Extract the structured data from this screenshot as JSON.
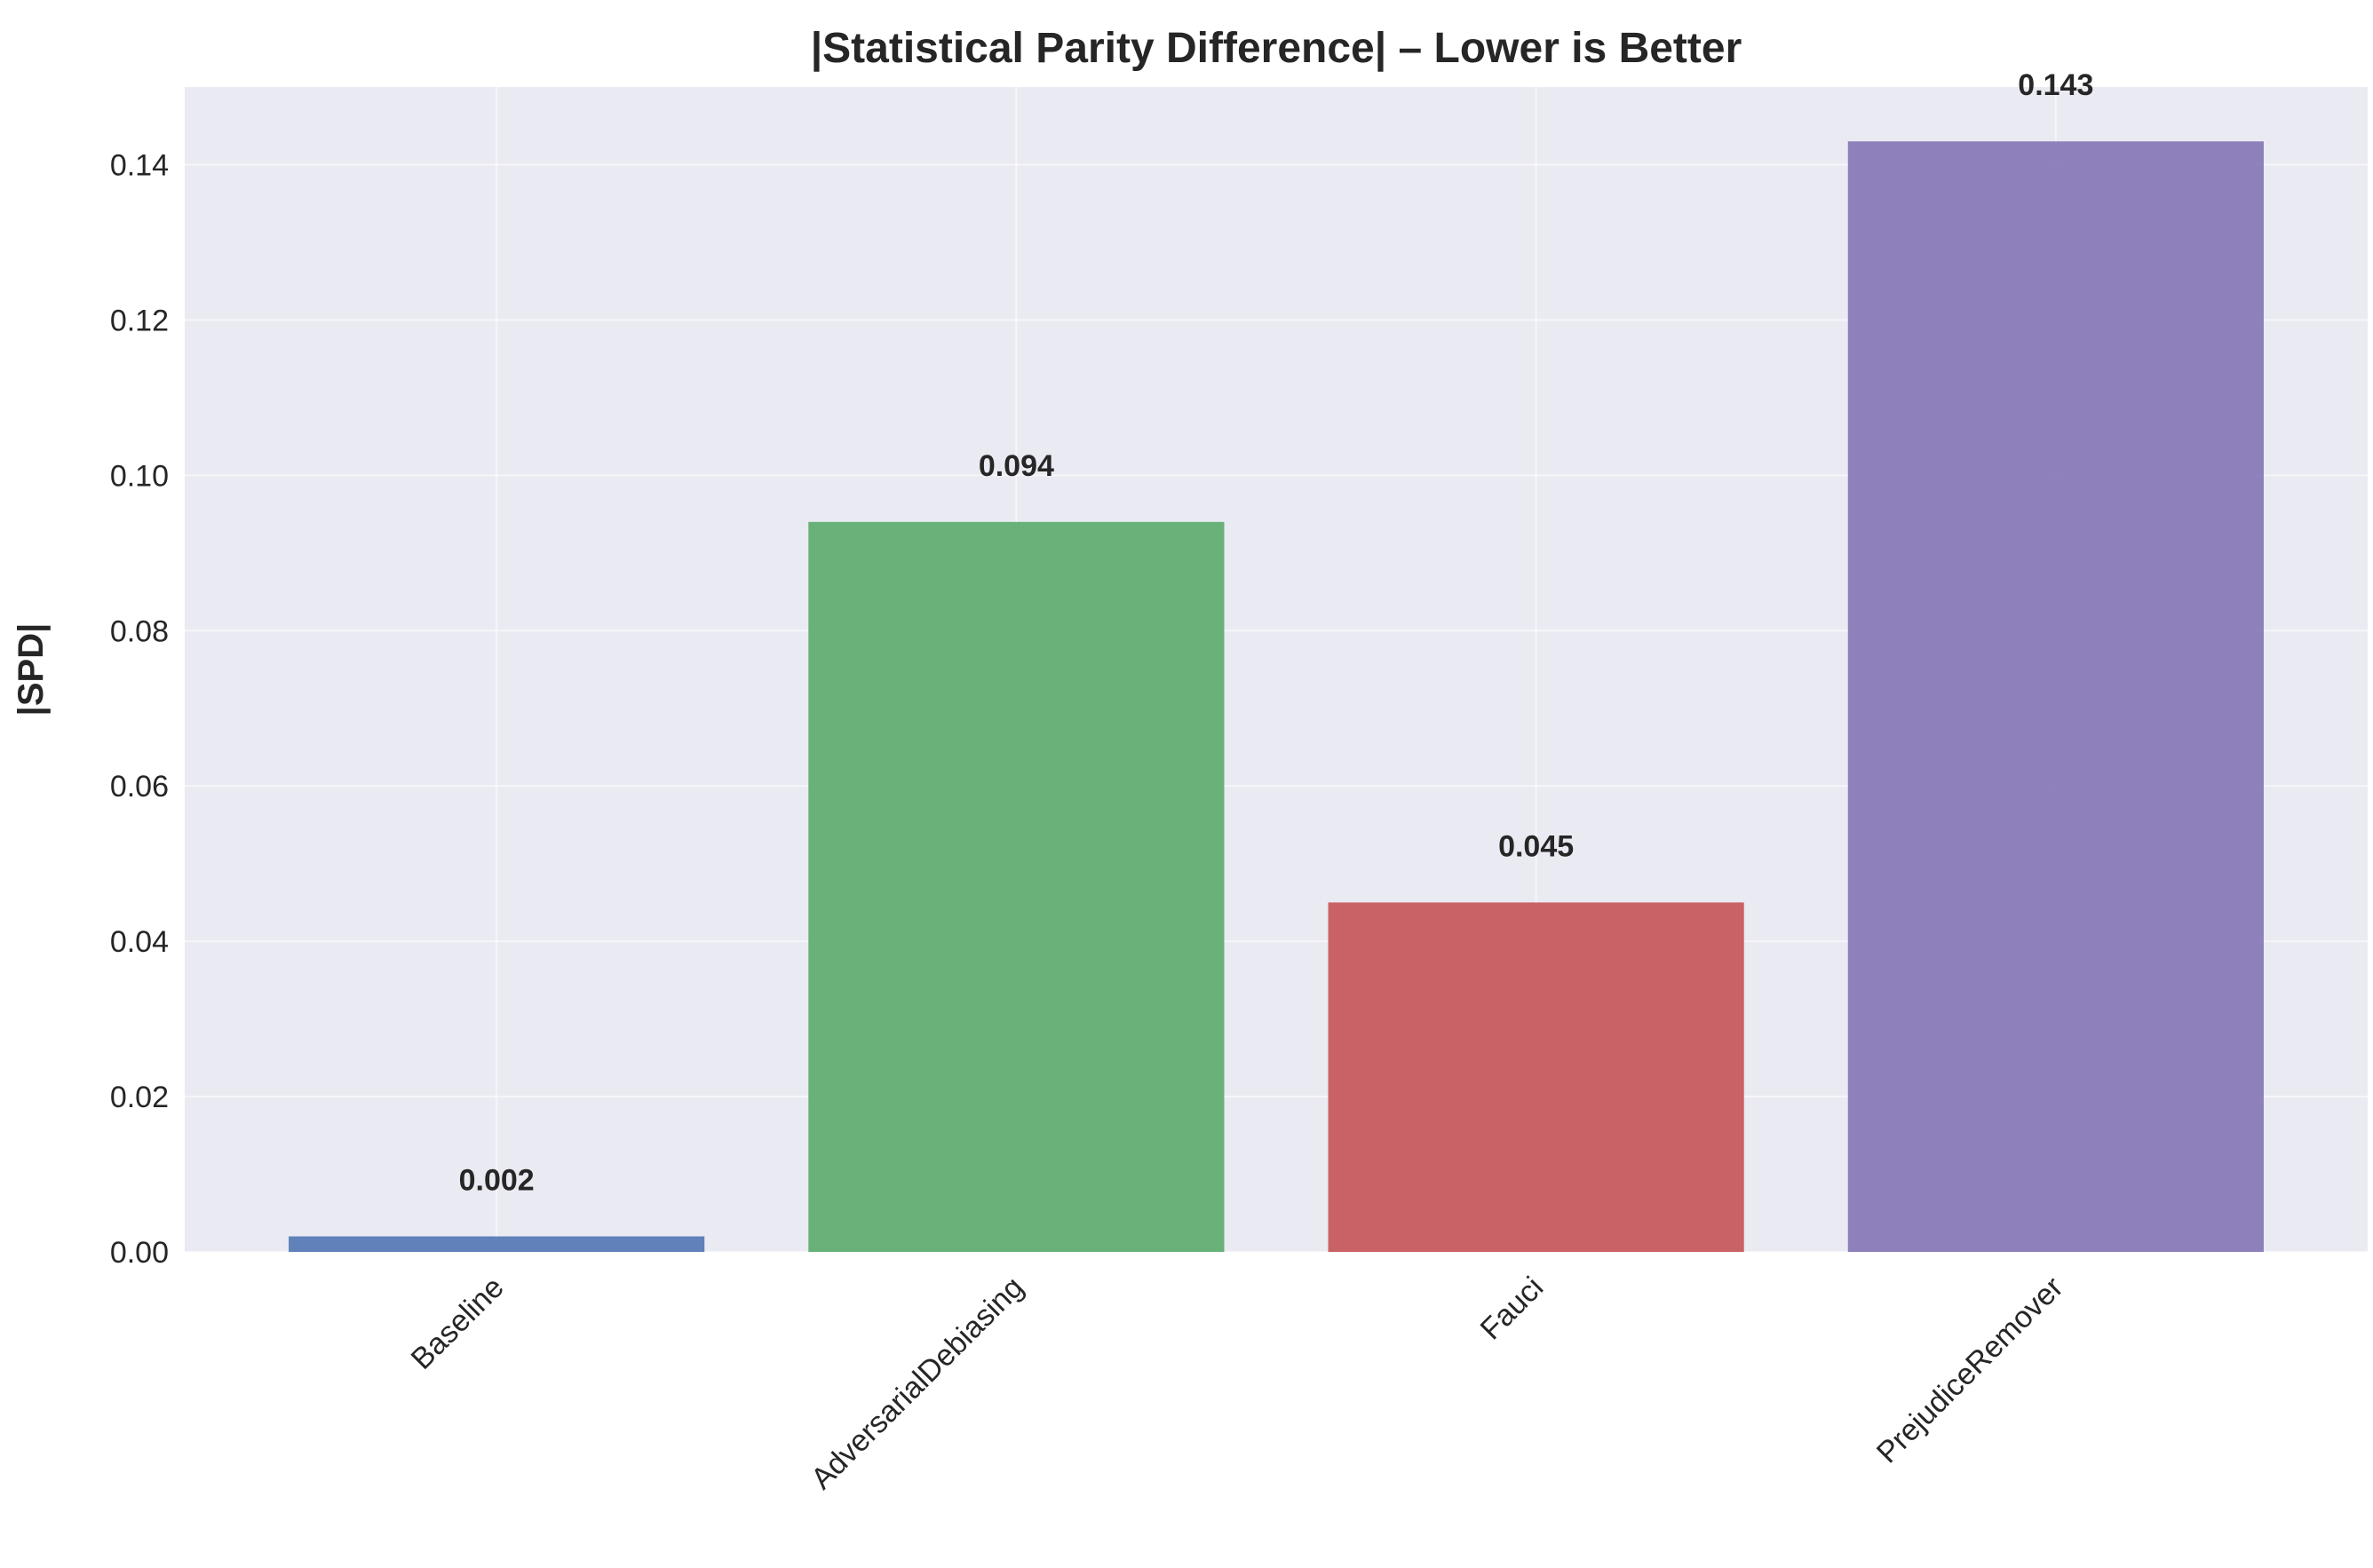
{
  "chart_data": {
    "type": "bar",
    "title": "|Statistical Parity Difference| – Lower is Better",
    "xlabel": "",
    "ylabel": "|SPD|",
    "categories": [
      "Baseline",
      "AdversarialDebiasing",
      "Fauci",
      "PrejudiceRemover"
    ],
    "values": [
      0.002,
      0.094,
      0.045,
      0.143
    ],
    "data_labels": [
      "0.002",
      "0.094",
      "0.045",
      "0.143"
    ],
    "colors": [
      "#4c72b0",
      "#55a868",
      "#c44e52",
      "#8172b3"
    ],
    "ylim": [
      0,
      0.15
    ],
    "yticks": [
      0.0,
      0.02,
      0.04,
      0.06,
      0.08,
      0.1,
      0.12,
      0.14
    ],
    "ytick_labels": [
      "0.00",
      "0.02",
      "0.04",
      "0.06",
      "0.08",
      "0.10",
      "0.12",
      "0.14"
    ],
    "grid": true,
    "background": "#eaeaf2",
    "legend": "none"
  }
}
